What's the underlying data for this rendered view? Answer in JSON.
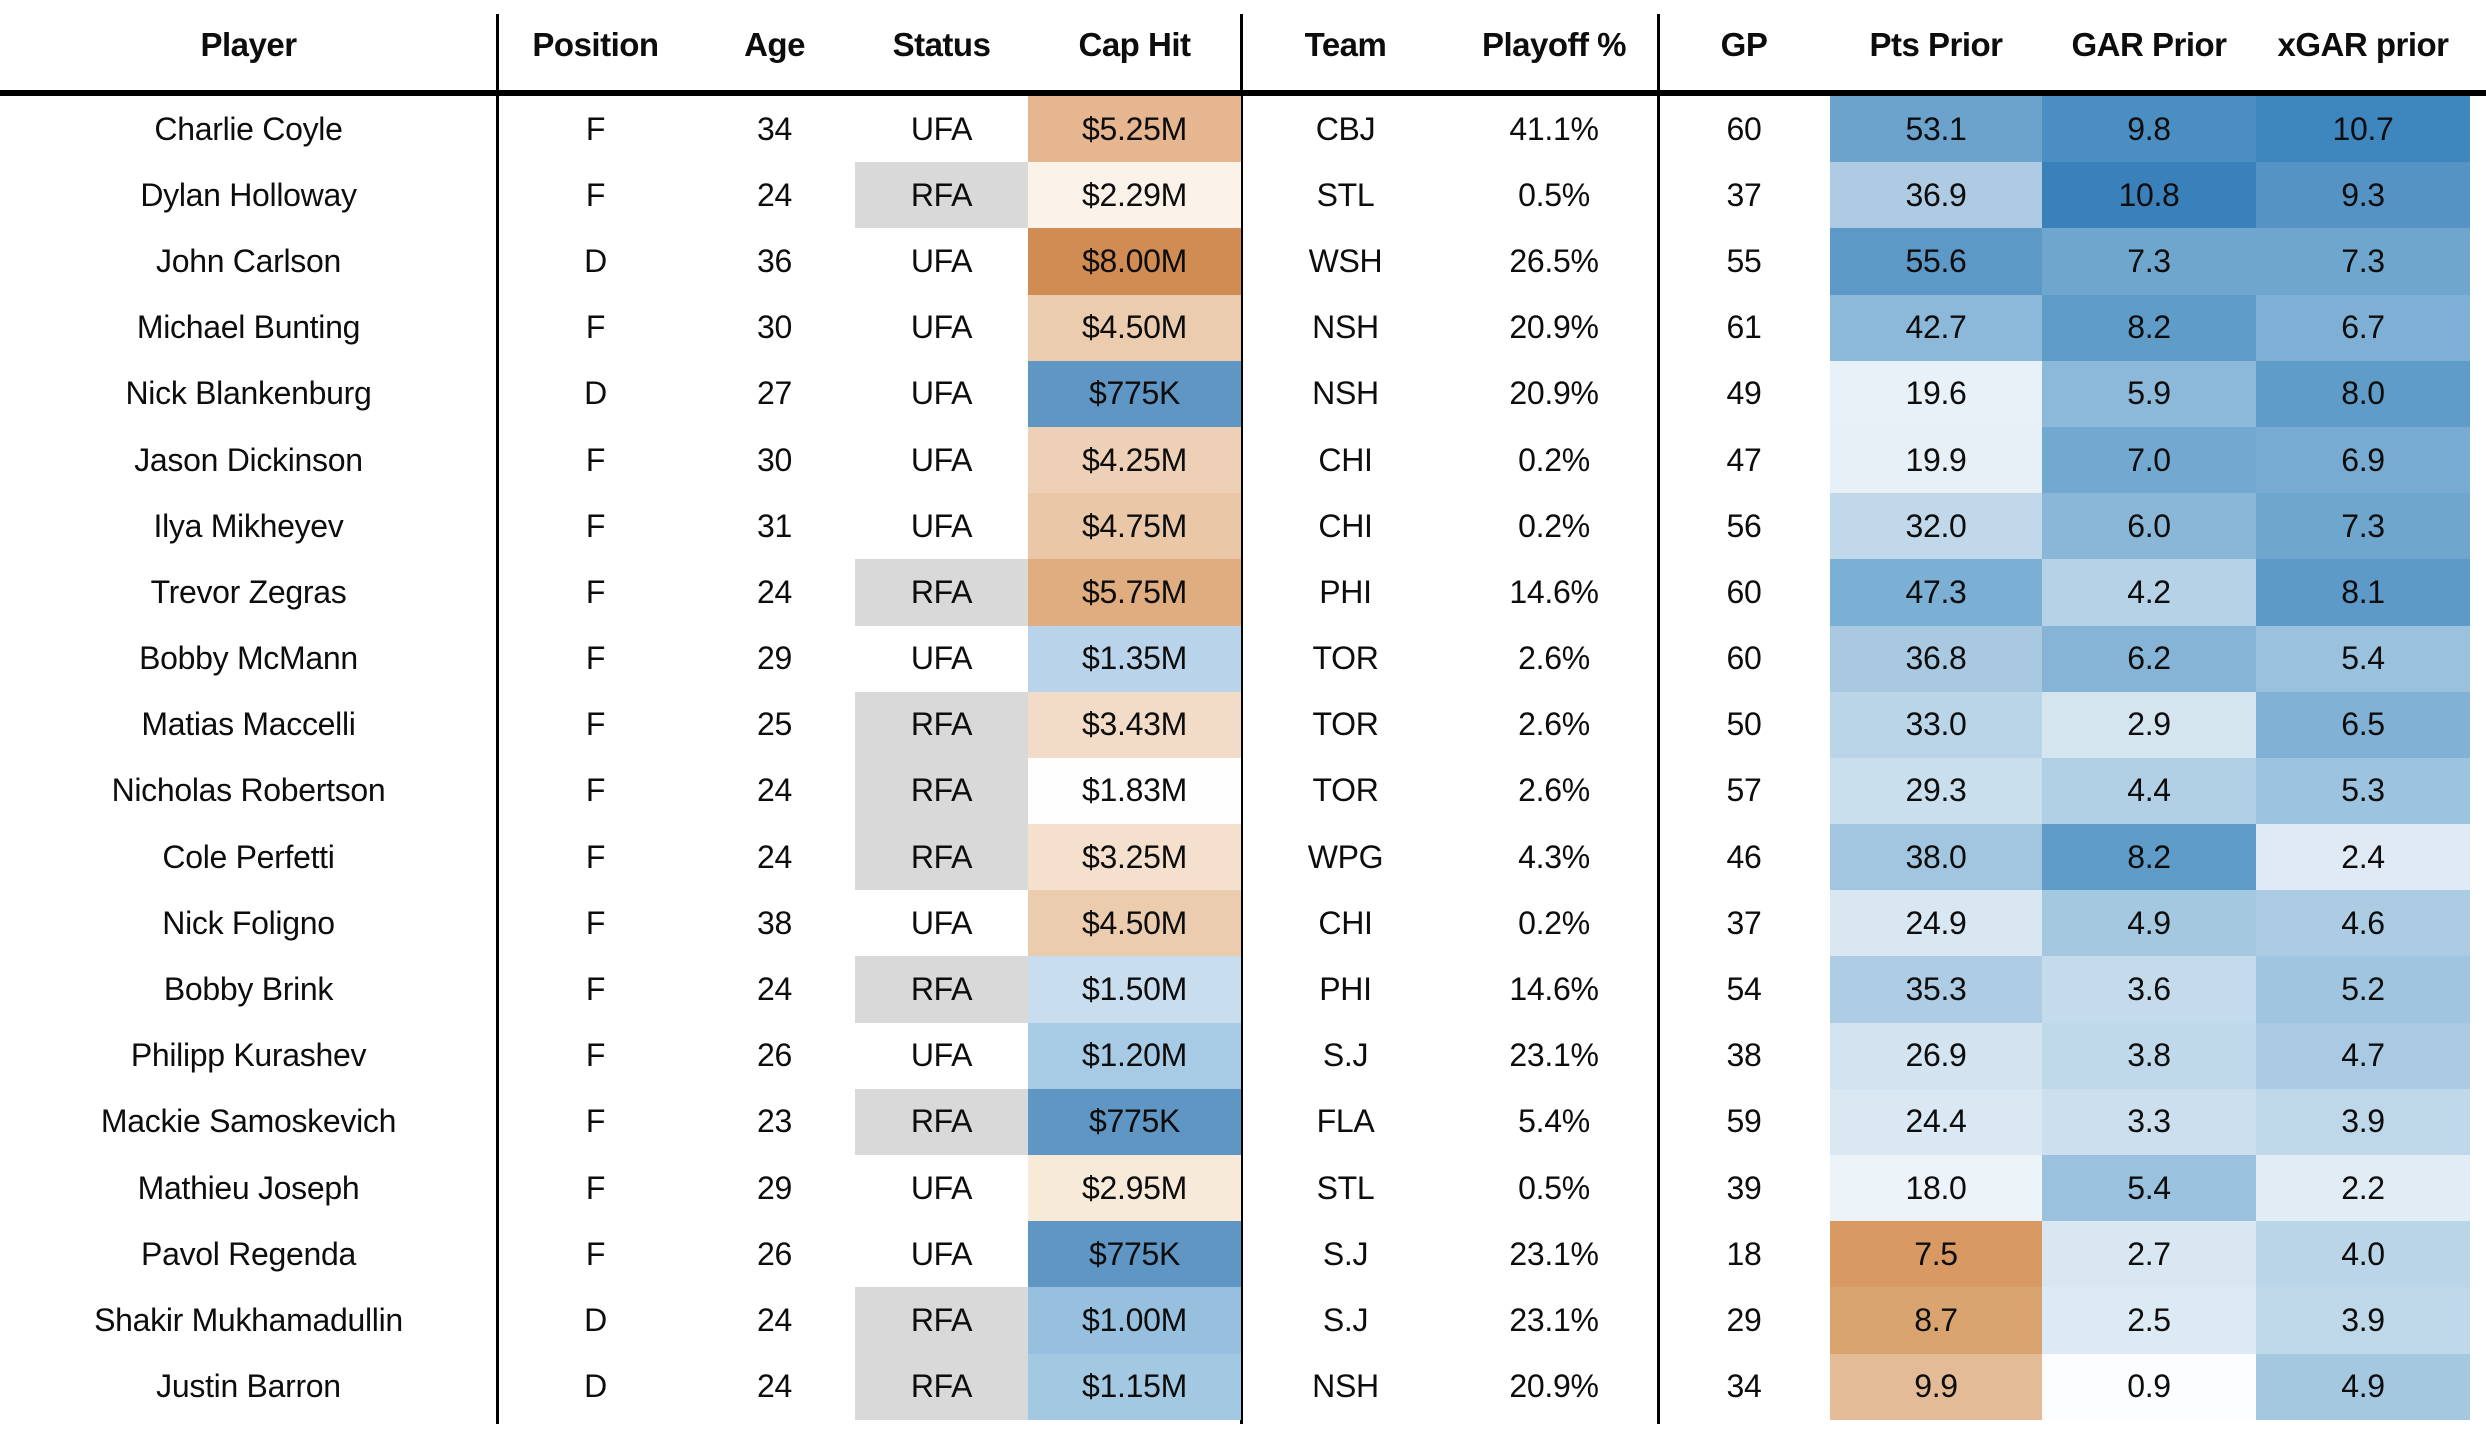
{
  "chart_data": {
    "type": "table",
    "title": "",
    "legend": "none",
    "grid": "off",
    "heatmap_colors": {
      "blue_high": "#3a81bb",
      "white_mid": "#ffffff",
      "orange_low": "#d08c52",
      "rfa_status_gray": "#d9d9d9",
      "rule_black": "#000000"
    },
    "columns": [
      {
        "key": "player",
        "label": "Player"
      },
      {
        "key": "position",
        "label": "Position"
      },
      {
        "key": "age",
        "label": "Age"
      },
      {
        "key": "status",
        "label": "Status"
      },
      {
        "key": "cap_hit",
        "label": "Cap Hit"
      },
      {
        "key": "team",
        "label": "Team"
      },
      {
        "key": "playoff_pct",
        "label": "Playoff %"
      },
      {
        "key": "gp",
        "label": "GP"
      },
      {
        "key": "pts_prior",
        "label": "Pts Prior"
      },
      {
        "key": "gar_prior",
        "label": "GAR Prior"
      },
      {
        "key": "xgar_prior",
        "label": "xGAR prior"
      }
    ],
    "rows": [
      {
        "player": "Charlie Coyle",
        "position": "F",
        "age": "34",
        "status": "UFA",
        "cap_hit": "$5.25M",
        "team": "CBJ",
        "playoff_pct": "41.1%",
        "gp": "60",
        "pts_prior": "53.1",
        "gar_prior": "9.8",
        "xgar_prior": "10.7",
        "bg": {
          "cap_hit": "#e5b68f",
          "pts_prior": "#6ba3cc",
          "gar_prior": "#4b8fc2",
          "xgar_prior": "#3e86be"
        }
      },
      {
        "player": "Dylan Holloway",
        "position": "F",
        "age": "24",
        "status": "RFA",
        "cap_hit": "$2.29M",
        "team": "STL",
        "playoff_pct": "0.5%",
        "gp": "37",
        "pts_prior": "36.9",
        "gar_prior": "10.8",
        "xgar_prior": "9.3",
        "bg": {
          "status": "#d9d9d9",
          "cap_hit": "#fbf2ea",
          "pts_prior": "#aecbe3",
          "gar_prior": "#3a81bb",
          "xgar_prior": "#5493c4"
        }
      },
      {
        "player": "John Carlson",
        "position": "D",
        "age": "36",
        "status": "UFA",
        "cap_hit": "$8.00M",
        "team": "WSH",
        "playoff_pct": "26.5%",
        "gp": "55",
        "pts_prior": "55.6",
        "gar_prior": "7.3",
        "xgar_prior": "7.3",
        "bg": {
          "cap_hit": "#d08c52",
          "pts_prior": "#5c99c7",
          "gar_prior": "#6fa6ce",
          "xgar_prior": "#6fa6ce"
        }
      },
      {
        "player": "Michael Bunting",
        "position": "F",
        "age": "30",
        "status": "UFA",
        "cap_hit": "$4.50M",
        "team": "NSH",
        "playoff_pct": "20.9%",
        "gp": "61",
        "pts_prior": "42.7",
        "gar_prior": "8.2",
        "xgar_prior": "6.7",
        "bg": {
          "cap_hit": "#ecccae",
          "pts_prior": "#8cb8da",
          "gar_prior": "#5f9cc8",
          "xgar_prior": "#7db0d4"
        }
      },
      {
        "player": "Nick Blankenburg",
        "position": "D",
        "age": "27",
        "status": "UFA",
        "cap_hit": "$775K",
        "team": "NSH",
        "playoff_pct": "20.9%",
        "gp": "49",
        "pts_prior": "19.6",
        "gar_prior": "5.9",
        "xgar_prior": "8.0",
        "bg": {
          "cap_hit": "#6096c4",
          "pts_prior": "#e9f1f8",
          "gar_prior": "#8cb8da",
          "xgar_prior": "#5f9cc8"
        }
      },
      {
        "player": "Jason Dickinson",
        "position": "F",
        "age": "30",
        "status": "UFA",
        "cap_hit": "$4.25M",
        "team": "CHI",
        "playoff_pct": "0.2%",
        "gp": "47",
        "pts_prior": "19.9",
        "gar_prior": "7.0",
        "xgar_prior": "6.9",
        "bg": {
          "cap_hit": "#edd0b5",
          "pts_prior": "#e7f0f7",
          "gar_prior": "#73a9d0",
          "xgar_prior": "#78abd1"
        }
      },
      {
        "player": "Ilya Mikheyev",
        "position": "F",
        "age": "31",
        "status": "UFA",
        "cap_hit": "$4.75M",
        "team": "CHI",
        "playoff_pct": "0.2%",
        "gp": "56",
        "pts_prior": "32.0",
        "gar_prior": "6.0",
        "xgar_prior": "7.3",
        "bg": {
          "cap_hit": "#eac7a7",
          "pts_prior": "#c0d8ea",
          "gar_prior": "#8ab6d8",
          "xgar_prior": "#6fa6ce"
        }
      },
      {
        "player": "Trevor Zegras",
        "position": "F",
        "age": "24",
        "status": "RFA",
        "cap_hit": "$5.75M",
        "team": "PHI",
        "playoff_pct": "14.6%",
        "gp": "60",
        "pts_prior": "47.3",
        "gar_prior": "4.2",
        "xgar_prior": "8.1",
        "bg": {
          "status": "#d9d9d9",
          "cap_hit": "#e0ad81",
          "pts_prior": "#7cafd4",
          "gar_prior": "#b5d2e7",
          "xgar_prior": "#5d9ac7"
        }
      },
      {
        "player": "Bobby McMann",
        "position": "F",
        "age": "29",
        "status": "UFA",
        "cap_hit": "$1.35M",
        "team": "TOR",
        "playoff_pct": "2.6%",
        "gp": "60",
        "pts_prior": "36.8",
        "gar_prior": "6.2",
        "xgar_prior": "5.4",
        "bg": {
          "cap_hit": "#b9d4ea",
          "pts_prior": "#a9c9e1",
          "gar_prior": "#86b4d7",
          "xgar_prior": "#9ac1de"
        }
      },
      {
        "player": "Matias Maccelli",
        "position": "F",
        "age": "25",
        "status": "RFA",
        "cap_hit": "$3.43M",
        "team": "TOR",
        "playoff_pct": "2.6%",
        "gp": "50",
        "pts_prior": "33.0",
        "gar_prior": "2.9",
        "xgar_prior": "6.5",
        "bg": {
          "status": "#d9d9d9",
          "cap_hit": "#f2dcc7",
          "pts_prior": "#bad4e8",
          "gar_prior": "#d5e5f0",
          "xgar_prior": "#81b2d5"
        }
      },
      {
        "player": "Nicholas Robertson",
        "position": "F",
        "age": "24",
        "status": "RFA",
        "cap_hit": "$1.83M",
        "team": "TOR",
        "playoff_pct": "2.6%",
        "gp": "57",
        "pts_prior": "29.3",
        "gar_prior": "4.4",
        "xgar_prior": "5.3",
        "bg": {
          "status": "#d9d9d9",
          "cap_hit": "#fefefe",
          "pts_prior": "#cadfee",
          "gar_prior": "#b1d0e6",
          "xgar_prior": "#9cc3df"
        }
      },
      {
        "player": "Cole Perfetti",
        "position": "F",
        "age": "24",
        "status": "RFA",
        "cap_hit": "$3.25M",
        "team": "WPG",
        "playoff_pct": "4.3%",
        "gp": "46",
        "pts_prior": "38.0",
        "gar_prior": "8.2",
        "xgar_prior": "2.4",
        "bg": {
          "status": "#d9d9d9",
          "cap_hit": "#f4e0cd",
          "pts_prior": "#a3c6e0",
          "gar_prior": "#5f9cc8",
          "xgar_prior": "#dfeaf4"
        }
      },
      {
        "player": "Nick Foligno",
        "position": "F",
        "age": "38",
        "status": "UFA",
        "cap_hit": "$4.50M",
        "team": "CHI",
        "playoff_pct": "0.2%",
        "gp": "37",
        "pts_prior": "24.9",
        "gar_prior": "4.9",
        "xgar_prior": "4.6",
        "bg": {
          "cap_hit": "#ecccae",
          "pts_prior": "#d9e7f2",
          "gar_prior": "#a5c8e1",
          "xgar_prior": "#accce3"
        }
      },
      {
        "player": "Bobby Brink",
        "position": "F",
        "age": "24",
        "status": "RFA",
        "cap_hit": "$1.50M",
        "team": "PHI",
        "playoff_pct": "14.6%",
        "gp": "54",
        "pts_prior": "35.3",
        "gar_prior": "3.6",
        "xgar_prior": "5.2",
        "bg": {
          "status": "#d9d9d9",
          "cap_hit": "#c8deee",
          "pts_prior": "#aecde4",
          "gar_prior": "#c4dbeb",
          "xgar_prior": "#a0c5e0"
        }
      },
      {
        "player": "Philipp Kurashev",
        "position": "F",
        "age": "26",
        "status": "UFA",
        "cap_hit": "$1.20M",
        "team": "S.J",
        "playoff_pct": "23.1%",
        "gp": "38",
        "pts_prior": "26.9",
        "gar_prior": "3.8",
        "xgar_prior": "4.7",
        "bg": {
          "cap_hit": "#a7cbe4",
          "pts_prior": "#d3e3f0",
          "gar_prior": "#c0d9ea",
          "xgar_prior": "#a9cae2"
        }
      },
      {
        "player": "Mackie Samoskevich",
        "position": "F",
        "age": "23",
        "status": "RFA",
        "cap_hit": "$775K",
        "team": "FLA",
        "playoff_pct": "5.4%",
        "gp": "59",
        "pts_prior": "24.4",
        "gar_prior": "3.3",
        "xgar_prior": "3.9",
        "bg": {
          "status": "#d9d9d9",
          "cap_hit": "#6096c4",
          "pts_prior": "#d9e8f2",
          "gar_prior": "#cbdfee",
          "xgar_prior": "#bed7e9"
        }
      },
      {
        "player": "Mathieu Joseph",
        "position": "F",
        "age": "29",
        "status": "UFA",
        "cap_hit": "$2.95M",
        "team": "STL",
        "playoff_pct": "0.5%",
        "gp": "39",
        "pts_prior": "18.0",
        "gar_prior": "5.4",
        "xgar_prior": "2.2",
        "bg": {
          "cap_hit": "#f7ead9",
          "pts_prior": "#edf4f9",
          "gar_prior": "#9ac1de",
          "xgar_prior": "#e2ecf5"
        }
      },
      {
        "player": "Pavol Regenda",
        "position": "F",
        "age": "26",
        "status": "UFA",
        "cap_hit": "$775K",
        "team": "S.J",
        "playoff_pct": "23.1%",
        "gp": "18",
        "pts_prior": "7.5",
        "gar_prior": "2.7",
        "xgar_prior": "4.0",
        "bg": {
          "cap_hit": "#6096c4",
          "pts_prior": "#d89a62",
          "gar_prior": "#d8e7f2",
          "xgar_prior": "#bbd5e8"
        }
      },
      {
        "player": "Shakir Mukhamadullin",
        "position": "D",
        "age": "24",
        "status": "RFA",
        "cap_hit": "$1.00M",
        "team": "S.J",
        "playoff_pct": "23.1%",
        "gp": "29",
        "pts_prior": "8.7",
        "gar_prior": "2.5",
        "xgar_prior": "3.9",
        "bg": {
          "status": "#d9d9d9",
          "cap_hit": "#97c0de",
          "pts_prior": "#daa471",
          "gar_prior": "#dceaf3",
          "xgar_prior": "#bed7e9"
        }
      },
      {
        "player": "Justin Barron",
        "position": "D",
        "age": "24",
        "status": "RFA",
        "cap_hit": "$1.15M",
        "team": "NSH",
        "playoff_pct": "20.9%",
        "gp": "34",
        "pts_prior": "9.9",
        "gar_prior": "0.9",
        "xgar_prior": "4.9",
        "bg": {
          "status": "#d9d9d9",
          "cap_hit": "#a3c8e1",
          "pts_prior": "#e3bb97",
          "gar_prior": "#fcfdfe",
          "xgar_prior": "#a5c8e1"
        }
      }
    ]
  }
}
